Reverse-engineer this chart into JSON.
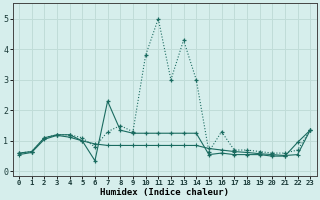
{
  "xlabel": "Humidex (Indice chaleur)",
  "background_color": "#d6eeec",
  "grid_color": "#c0dcd8",
  "line_color": "#1a6b60",
  "xlim": [
    -0.5,
    23.5
  ],
  "ylim": [
    -0.15,
    5.5
  ],
  "xtick_labels": [
    "0",
    "1",
    "2",
    "3",
    "4",
    "5",
    "6",
    "7",
    "8",
    "9",
    "10",
    "11",
    "12",
    "13",
    "14",
    "15",
    "16",
    "17",
    "18",
    "19",
    "20",
    "21",
    "22",
    "23"
  ],
  "ytick_values": [
    0,
    1,
    2,
    3,
    4,
    5
  ],
  "line1_x": [
    0,
    1,
    2,
    3,
    4,
    5,
    6,
    7,
    8,
    9,
    10,
    11,
    12,
    13,
    14,
    15,
    16,
    17,
    18,
    19,
    20,
    21,
    22,
    23
  ],
  "line1_y": [
    0.6,
    0.65,
    1.1,
    1.2,
    1.2,
    1.1,
    0.8,
    1.3,
    1.5,
    1.3,
    3.8,
    5.0,
    3.0,
    4.3,
    3.0,
    0.65,
    1.3,
    0.7,
    0.7,
    0.65,
    0.6,
    0.6,
    0.7,
    1.35
  ],
  "line2_x": [
    0,
    1,
    2,
    3,
    4,
    5,
    6,
    7,
    8,
    9,
    10,
    11,
    12,
    13,
    14,
    15,
    16,
    17,
    18,
    19,
    20,
    21,
    22,
    23
  ],
  "line2_y": [
    0.6,
    0.65,
    1.1,
    1.2,
    1.2,
    1.0,
    0.35,
    2.3,
    1.35,
    1.25,
    1.25,
    1.25,
    1.25,
    1.25,
    1.25,
    0.55,
    0.6,
    0.55,
    0.55,
    0.55,
    0.5,
    0.5,
    0.95,
    1.35
  ],
  "line3_x": [
    0,
    1,
    2,
    3,
    4,
    5,
    6,
    7,
    8,
    9,
    10,
    11,
    12,
    13,
    14,
    15,
    16,
    17,
    18,
    19,
    20,
    21,
    22,
    23
  ],
  "line3_y": [
    0.55,
    0.62,
    1.05,
    1.18,
    1.12,
    1.0,
    0.9,
    0.85,
    0.85,
    0.85,
    0.85,
    0.85,
    0.85,
    0.85,
    0.85,
    0.75,
    0.7,
    0.65,
    0.62,
    0.58,
    0.55,
    0.52,
    0.55,
    1.35
  ],
  "line1_style": "dotted",
  "line2_style": "solid",
  "line3_style": "solid"
}
